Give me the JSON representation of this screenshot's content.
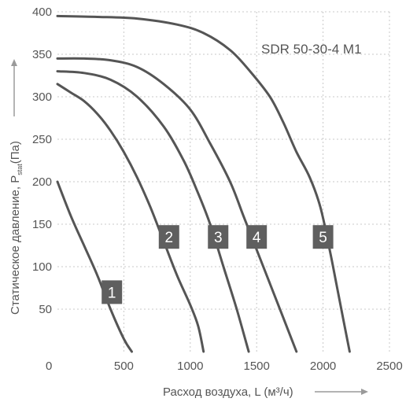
{
  "chart_data": {
    "type": "line",
    "title": "SDR 50-30-4 M1",
    "xlabel": "Расход воздуха, L (м³/ч)",
    "ylabel": "Статическое давление, P",
    "ylabel_sub": "stat",
    "ylabel_unit": "(Па)",
    "xlim": [
      0,
      2500
    ],
    "ylim": [
      0,
      400
    ],
    "x_ticks": [
      0,
      500,
      1000,
      1500,
      2000,
      2500
    ],
    "y_ticks": [
      50,
      100,
      150,
      200,
      250,
      300,
      350,
      400
    ],
    "grid": true,
    "series": [
      {
        "name": "1",
        "label_at": [
          410,
          70
        ],
        "points": [
          [
            0,
            200
          ],
          [
            100,
            160
          ],
          [
            200,
            125
          ],
          [
            300,
            90
          ],
          [
            400,
            50
          ],
          [
            500,
            15
          ],
          [
            560,
            0
          ]
        ]
      },
      {
        "name": "2",
        "label_at": [
          840,
          135
        ],
        "points": [
          [
            0,
            315
          ],
          [
            100,
            305
          ],
          [
            200,
            295
          ],
          [
            300,
            280
          ],
          [
            400,
            260
          ],
          [
            500,
            235
          ],
          [
            600,
            205
          ],
          [
            700,
            170
          ],
          [
            800,
            130
          ],
          [
            900,
            90
          ],
          [
            1000,
            55
          ],
          [
            1060,
            30
          ],
          [
            1100,
            0
          ]
        ]
      },
      {
        "name": "3",
        "label_at": [
          1210,
          135
        ],
        "points": [
          [
            0,
            330
          ],
          [
            200,
            328
          ],
          [
            400,
            320
          ],
          [
            600,
            300
          ],
          [
            800,
            265
          ],
          [
            950,
            225
          ],
          [
            1050,
            190
          ],
          [
            1150,
            150
          ],
          [
            1250,
            100
          ],
          [
            1350,
            50
          ],
          [
            1440,
            0
          ]
        ]
      },
      {
        "name": "4",
        "label_at": [
          1500,
          135
        ],
        "points": [
          [
            0,
            345
          ],
          [
            200,
            345
          ],
          [
            400,
            343
          ],
          [
            600,
            335
          ],
          [
            800,
            315
          ],
          [
            1000,
            285
          ],
          [
            1150,
            245
          ],
          [
            1300,
            200
          ],
          [
            1400,
            160
          ],
          [
            1500,
            120
          ],
          [
            1600,
            80
          ],
          [
            1700,
            40
          ],
          [
            1800,
            0
          ]
        ]
      },
      {
        "name": "5",
        "label_at": [
          2000,
          135
        ],
        "points": [
          [
            0,
            395
          ],
          [
            300,
            394
          ],
          [
            600,
            392
          ],
          [
            900,
            385
          ],
          [
            1100,
            375
          ],
          [
            1300,
            355
          ],
          [
            1450,
            330
          ],
          [
            1600,
            300
          ],
          [
            1700,
            270
          ],
          [
            1800,
            235
          ],
          [
            1900,
            205
          ],
          [
            1980,
            170
          ],
          [
            2050,
            120
          ],
          [
            2100,
            80
          ],
          [
            2150,
            40
          ],
          [
            2200,
            0
          ]
        ]
      }
    ]
  }
}
